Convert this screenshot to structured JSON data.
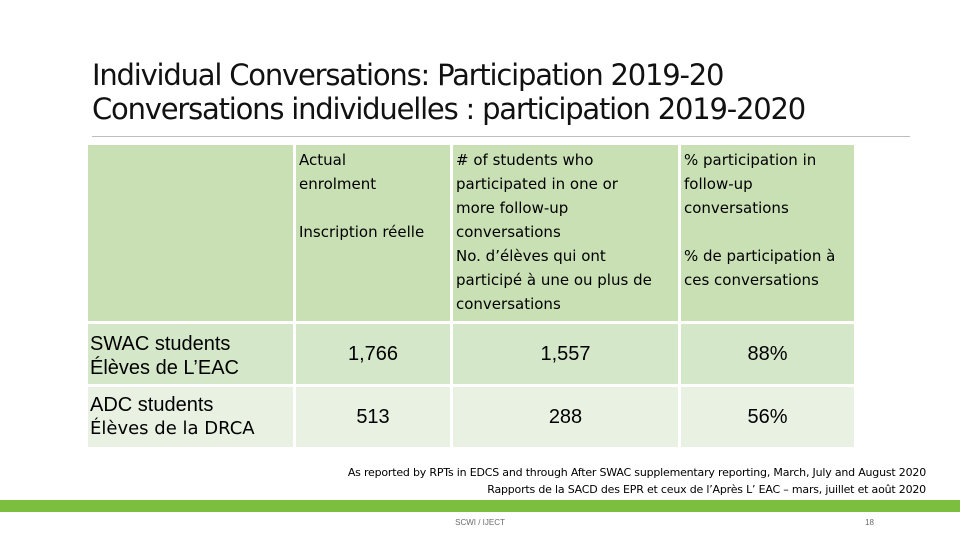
{
  "slide": {
    "title_line1": "Individual Conversations: Participation 2019-20",
    "title_line2": "Conversations individuelles : participation 2019-2020"
  },
  "table": {
    "headers": [
      "",
      "Actual\nenrolment\n\nInscription réelle",
      "# of students who\nparticipated in one or\nmore follow-up\nconversations\nNo. d’élèves qui ont\nparticipé à une ou plus de\nconversations",
      "% participation in\nfollow-up\nconversations\n\n% de participation à\nces conversations"
    ],
    "rows": [
      {
        "label_en": "SWAC students",
        "label_fr": "Élèves de L’EAC",
        "enrolment": "1,766",
        "participated": "1,557",
        "percent": "88%"
      },
      {
        "label_en": "ADC students",
        "label_fr": "Élèves de la DRCA",
        "enrolment": "513",
        "participated": "288",
        "percent": "56%"
      }
    ]
  },
  "note": {
    "line1": "As reported by RPTs in EDCS and through After SWAC supplementary reporting, March, July and August 2020",
    "line2": "Rapports de la SACD des EPR et ceux de l’Après L’ EAC – mars, juillet et août 2020"
  },
  "footer": {
    "text": "SCWI / IJECT",
    "page": "18"
  },
  "colors": {
    "header_bg": "#c9e0b5",
    "row1_bg": "#d5e7c9",
    "row2_bg": "#e9f1e3",
    "footer_bar": "#7cbf3f"
  }
}
